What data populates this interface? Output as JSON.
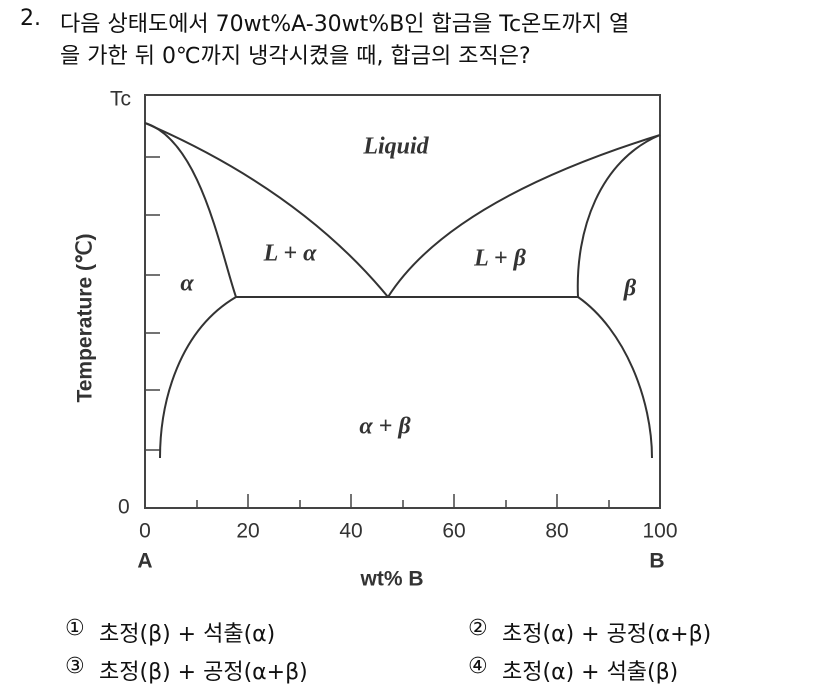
{
  "question": {
    "number": "2.",
    "line1": "다음 상태도에서 70wt%A-30wt%B인 합금을 Tc온도까지 열",
    "line2": "을 가한 뒤 0℃까지 냉각시켰을 때, 합금의 조직은?"
  },
  "diagram": {
    "y_axis_label": "Temperature (℃)",
    "y_top_label": "Tc",
    "y_bottom_label": "0",
    "x_axis_label": "wt% B",
    "x_tick_labels": [
      "0",
      "20",
      "40",
      "60",
      "80",
      "100"
    ],
    "left_end": "A",
    "right_end": "B",
    "regions": {
      "liquid": "Liquid",
      "l_alpha": "L + α",
      "l_beta": "L + β",
      "alpha": "α",
      "beta": "β",
      "alpha_beta": "α + β"
    }
  },
  "options": [
    {
      "marker": "①",
      "text": "초정(β) + 석출(α)"
    },
    {
      "marker": "②",
      "text": "초정(α) + 공정(α+β)"
    },
    {
      "marker": "③",
      "text": "초정(β) + 공정(α+β)"
    },
    {
      "marker": "④",
      "text": "초정(α) + 석출(β)"
    }
  ]
}
